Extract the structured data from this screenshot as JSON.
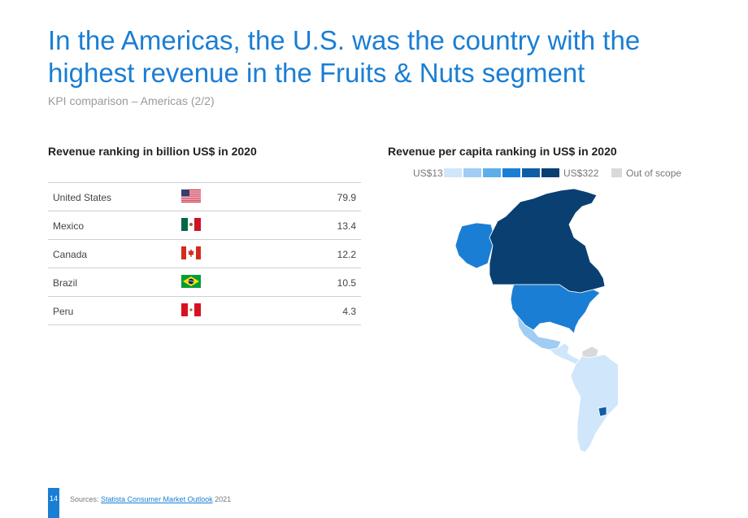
{
  "title": "In the Americas, the U.S. was the country with the highest revenue in the Fruits & Nuts segment",
  "subtitle": "KPI comparison – Americas (2/2)",
  "left_heading": "Revenue ranking in billion US$ in 2020",
  "right_heading": "Revenue per capita ranking in US$ in 2020",
  "ranking": [
    {
      "country": "United States",
      "flag": "us-flag",
      "value": "79.9"
    },
    {
      "country": "Mexico",
      "flag": "mexico-flag",
      "value": "13.4"
    },
    {
      "country": "Canada",
      "flag": "canada-flag",
      "value": "12.2"
    },
    {
      "country": "Brazil",
      "flag": "brazil-flag",
      "value": "10.5"
    },
    {
      "country": "Peru",
      "flag": "peru-flag",
      "value": "4.3"
    }
  ],
  "legend": {
    "min_label": "US$13",
    "max_label": "US$322",
    "out_of_scope_label": "Out of scope",
    "scale_colors": [
      "#cfe6fb",
      "#9fcdf3",
      "#5daee9",
      "#1a7ed4",
      "#0f5da6",
      "#0a3f72"
    ],
    "out_of_scope_color": "#d9d9d9"
  },
  "map_colors": {
    "canada": "#0a3f72",
    "alaska": "#1a7ed4",
    "usa": "#1a7ed4",
    "mexico": "#9fcdf3",
    "central_america": "#cfe6fb",
    "south_america": "#cfe6fb",
    "uruguay": "#0f5da6",
    "venezuela": "#d9d9d9"
  },
  "footer": {
    "page_number": "14",
    "source_prefix": "Sources: ",
    "source_link": "Statista Consumer Market Outlook",
    "source_suffix": " 2021"
  }
}
